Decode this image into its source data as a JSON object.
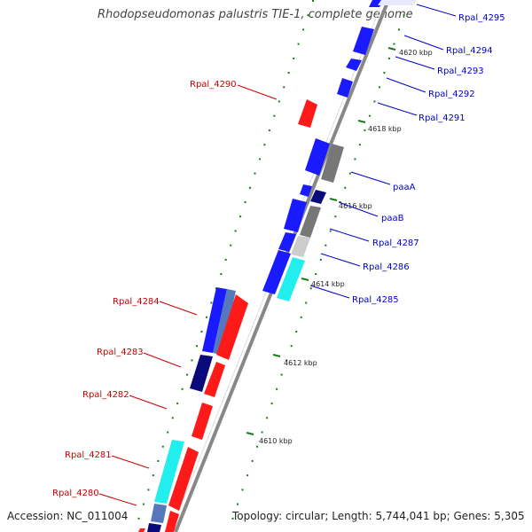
{
  "title": "Rhodopseudomonas palustris TIE-1, complete genome",
  "footer": {
    "accession": "Accession: NC_011004",
    "topology": "Topology: circular; Length: 5,744,041 bp; Genes: 5,305"
  },
  "colors": {
    "forward_cds": "#1a1aff",
    "reverse_cds": "#ff1a1a",
    "backbone": "#888888",
    "tick": "#1a7a1a",
    "label_forward": "#0000cc",
    "label_reverse": "#cc0000",
    "dark_gene": "#0a0a7a",
    "gray_gene": "#777777",
    "cyan_gene": "#22eeee"
  },
  "scale_labels": [
    "4620 kbp",
    "4618 kbp",
    "4616 kbp",
    "4614 kbp",
    "4612 kbp",
    "4610 kbp"
  ],
  "genes_forward_labels": [
    "Rpal_4295",
    "Rpal_4294",
    "Rpal_4293",
    "Rpal_4292",
    "Rpal_4291",
    "paaA",
    "paaB",
    "Rpal_4287",
    "Rpal_4286",
    "Rpal_4285"
  ],
  "genes_reverse_labels": [
    "Rpal_4290",
    "Rpal_4284",
    "Rpal_4283",
    "Rpal_4282",
    "Rpal_4281",
    "Rpal_4280"
  ]
}
